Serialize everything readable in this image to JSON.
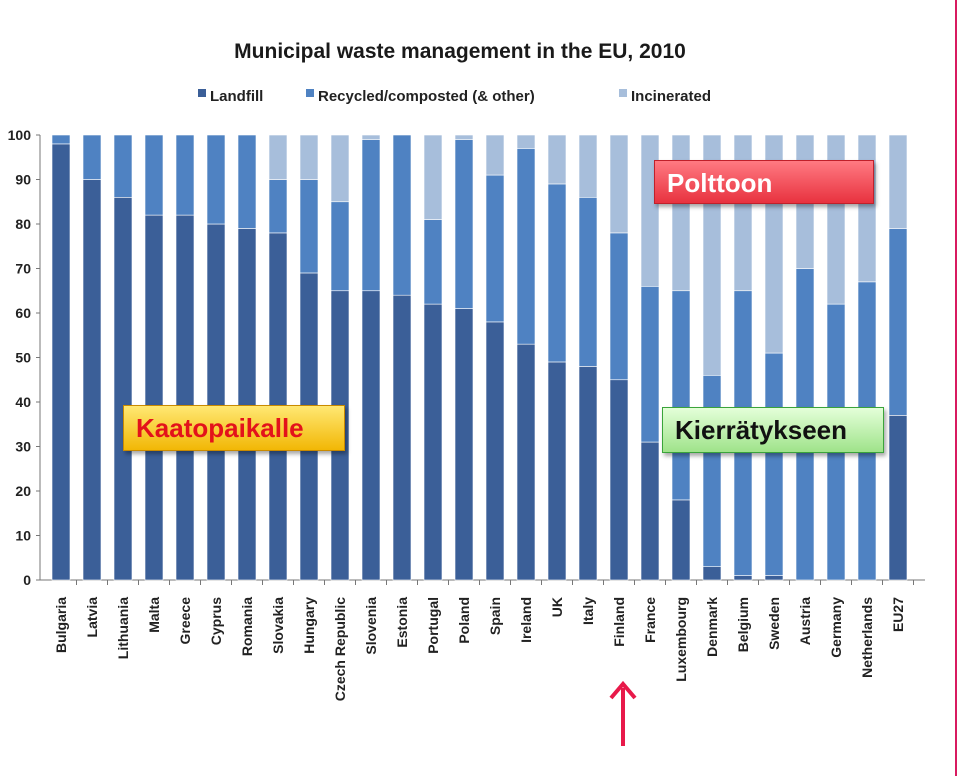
{
  "chart_data": {
    "type": "bar",
    "stacked": true,
    "title": "Municipal waste management in the EU, 2010",
    "categories": [
      "Bulgaria",
      "Latvia",
      "Lithuania",
      "Malta",
      "Greece",
      "Cyprus",
      "Romania",
      "Slovakia",
      "Hungary",
      "Czech Republic",
      "Slovenia",
      "Estonia",
      "Portugal",
      "Poland",
      "Spain",
      "Ireland",
      "UK",
      "Italy",
      "Finland",
      "France",
      "Luxembourg",
      "Denmark",
      "Belgium",
      "Sweden",
      "Austria",
      "Germany",
      "Netherlands",
      "EU27"
    ],
    "series": [
      {
        "name": "Landfill",
        "color": "#3b5f98",
        "values": [
          98,
          90,
          86,
          82,
          82,
          80,
          79,
          78,
          69,
          65,
          65,
          64,
          62,
          61,
          58,
          53,
          49,
          48,
          45,
          31,
          18,
          3,
          1,
          1,
          0,
          0,
          0,
          37
        ]
      },
      {
        "name": "Recycled/composted (& other)",
        "color": "#4f82c2",
        "values": [
          2,
          10,
          14,
          18,
          18,
          20,
          21,
          12,
          21,
          20,
          34,
          36,
          19,
          38,
          33,
          44,
          40,
          38,
          33,
          35,
          47,
          43,
          64,
          50,
          70,
          62,
          67,
          42
        ]
      },
      {
        "name": "Incinerated",
        "color": "#a7bedb",
        "values": [
          0,
          0,
          0,
          0,
          0,
          0,
          0,
          10,
          10,
          15,
          1,
          0,
          19,
          1,
          9,
          3,
          11,
          14,
          22,
          34,
          35,
          54,
          35,
          49,
          30,
          38,
          33,
          21
        ]
      }
    ],
    "ylim": [
      0,
      100
    ],
    "yticks": [
      "0",
      "10",
      "20",
      "30",
      "40",
      "50",
      "60",
      "70",
      "80",
      "90",
      "100"
    ],
    "legend_position": "top",
    "grid": false
  },
  "annotations": {
    "landfill_label": "Kaatopaikalle",
    "incinerated_label": "Polttoon",
    "recycled_label": "Kierrätykseen"
  },
  "colors": {
    "landfill_callout_text": "#e3121b",
    "pointer_arrow": "#e8194a"
  },
  "icons": {
    "highlight_pointer": "up-arrow-icon"
  }
}
